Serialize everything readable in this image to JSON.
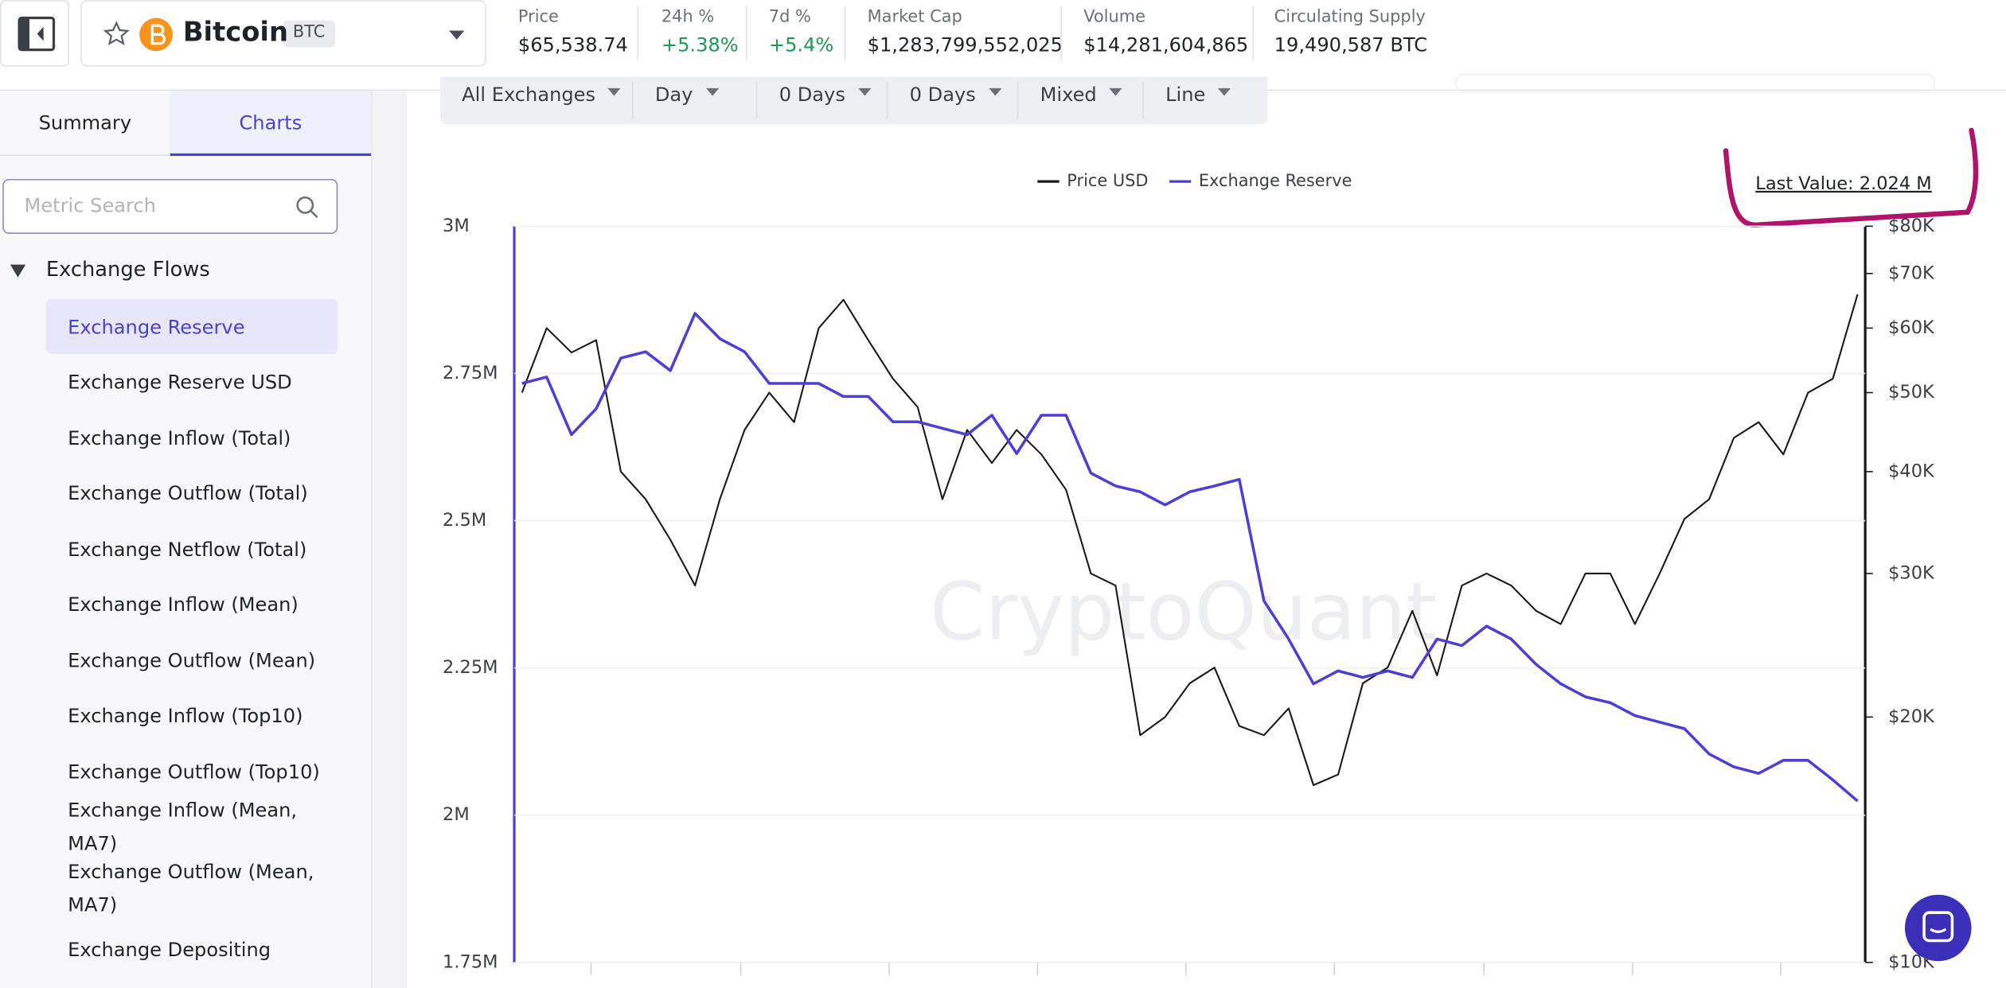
{
  "header": {
    "coin": "Bitcoin",
    "symbol": "BTC",
    "stats": [
      {
        "label": "Price",
        "value": "$65,538.74",
        "color": "#1f2329"
      },
      {
        "label": "24h %",
        "value": "+5.38%",
        "color": "#1e9a55"
      },
      {
        "label": "7d %",
        "value": "+5.4%",
        "color": "#1e9a55"
      },
      {
        "label": "Market Cap",
        "value": "$1,283,799,552,025",
        "color": "#1f2329"
      },
      {
        "label": "Volume",
        "value": "$14,281,604,865",
        "color": "#1f2329"
      },
      {
        "label": "Circulating Supply",
        "value": "19,490,587 BTC",
        "color": "#1f2329"
      }
    ]
  },
  "sidebar": {
    "tabs": [
      "Summary",
      "Charts"
    ],
    "search_placeholder": "Metric Search",
    "group": "Exchange Flows",
    "items": [
      "Exchange Reserve",
      "Exchange Reserve USD",
      "Exchange Inflow (Total)",
      "Exchange Outflow (Total)",
      "Exchange Netflow (Total)",
      "Exchange Inflow (Mean)",
      "Exchange Outflow (Mean)",
      "Exchange Inflow (Top10)",
      "Exchange Outflow (Top10)",
      "Exchange Inflow (Mean, MA7)",
      "Exchange Outflow (Mean, MA7)",
      "Exchange Depositing"
    ]
  },
  "toolbar": [
    "All Exchanges",
    "Day",
    "0 Days",
    "0 Days",
    "Mixed",
    "Line"
  ],
  "chart_data": {
    "type": "line",
    "watermark": "CryptoQuant",
    "annotation": "Last Value: 2.024 M",
    "ylim": [
      1750000,
      3000000
    ],
    "yticks": [
      {
        "value": 1750000,
        "label": "1.75M"
      },
      {
        "value": 2000000,
        "label": "2M"
      },
      {
        "value": 2250000,
        "label": "2.25M"
      },
      {
        "value": 2500000,
        "label": "2.5M"
      },
      {
        "value": 2750000,
        "label": "2.75M"
      },
      {
        "value": 3000000,
        "label": "3M"
      }
    ],
    "y2lim": [
      10000,
      80000
    ],
    "y2_log": true,
    "y2ticks": [
      {
        "value": 10000,
        "label": "$10K"
      },
      {
        "value": 20000,
        "label": "$20K"
      },
      {
        "value": 30000,
        "label": "$30K"
      },
      {
        "value": 40000,
        "label": "$40K"
      },
      {
        "value": 50000,
        "label": "$50K"
      },
      {
        "value": 60000,
        "label": "$60K"
      },
      {
        "value": 70000,
        "label": "$70K"
      },
      {
        "value": 80000,
        "label": "$80K"
      }
    ],
    "series": [
      {
        "name": "Price USD",
        "color": "#1a1a1a",
        "axis": "y2",
        "values": [
          50000,
          60000,
          56000,
          58000,
          40000,
          37000,
          33000,
          29000,
          37000,
          45000,
          50000,
          46000,
          60000,
          65000,
          58000,
          52000,
          48000,
          37000,
          45000,
          41000,
          45000,
          42000,
          38000,
          30000,
          29000,
          19000,
          20000,
          22000,
          23000,
          19500,
          19000,
          20500,
          16500,
          17000,
          22000,
          23000,
          27000,
          22500,
          29000,
          30000,
          29000,
          27000,
          26000,
          30000,
          30000,
          26000,
          30000,
          35000,
          37000,
          44000,
          46000,
          42000,
          50000,
          52000,
          66000
        ]
      },
      {
        "name": "Exchange Reserve",
        "color": "#4c3fd6",
        "values": [
          2733000,
          2744000,
          2646000,
          2690000,
          2776000,
          2787000,
          2755000,
          2852000,
          2809000,
          2787000,
          2733000,
          2733000,
          2733000,
          2711000,
          2711000,
          2668000,
          2668000,
          2657000,
          2646000,
          2679000,
          2614000,
          2679000,
          2679000,
          2581000,
          2559000,
          2549000,
          2527000,
          2549000,
          2559000,
          2570000,
          2364000,
          2299000,
          2223000,
          2245000,
          2234000,
          2245000,
          2234000,
          2299000,
          2288000,
          2321000,
          2299000,
          2256000,
          2223000,
          2201000,
          2191000,
          2169000,
          2158000,
          2147000,
          2104000,
          2082000,
          2071000,
          2093000,
          2093000,
          2060000,
          2024000
        ]
      }
    ]
  }
}
